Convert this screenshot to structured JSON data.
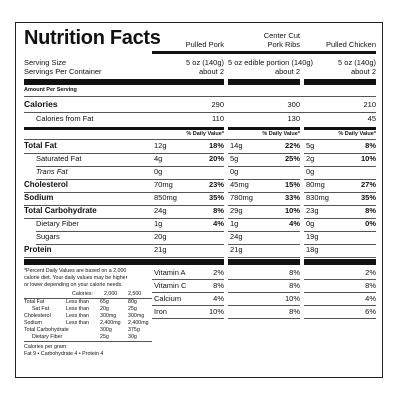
{
  "title": "Nutrition Facts",
  "columns": [
    "Pulled Pork",
    "Center Cut Pork Ribs",
    "Pulled Chicken"
  ],
  "columns_split": [
    [
      "Pulled Pork"
    ],
    [
      "Center Cut",
      "Pork Ribs"
    ],
    [
      "Pulled Chicken"
    ]
  ],
  "serving_size_label": "Serving Size",
  "servings_per_container_label": "Servings Per Container",
  "serving_sizes": [
    "5 oz (140g)",
    "5 oz edible portion (140g)",
    "5 oz (140g)"
  ],
  "servings": [
    "about 2",
    "about 2",
    "about 2"
  ],
  "amount_per_serving": "Amount Per Serving",
  "calories_label": "Calories",
  "calories": [
    "290",
    "300",
    "210"
  ],
  "calories_fat_label": "Calories from Fat",
  "calories_fat": [
    "110",
    "130",
    "45"
  ],
  "dv_header": "% Daily Value*",
  "nutrients": [
    {
      "label": "Total Fat",
      "bold": true,
      "indent": false,
      "vals": [
        [
          "12g",
          "18%"
        ],
        [
          "14g",
          "22%"
        ],
        [
          "5g",
          "8%"
        ]
      ]
    },
    {
      "label": "Saturated Fat",
      "bold": false,
      "indent": true,
      "vals": [
        [
          "4g",
          "20%"
        ],
        [
          "5g",
          "25%"
        ],
        [
          "2g",
          "10%"
        ]
      ]
    },
    {
      "label": "Trans Fat",
      "bold": false,
      "indent": true,
      "italic": true,
      "vals": [
        [
          "0g",
          ""
        ],
        [
          "0g",
          ""
        ],
        [
          "0g",
          ""
        ]
      ]
    },
    {
      "label": "Cholesterol",
      "bold": true,
      "indent": false,
      "vals": [
        [
          "70mg",
          "23%"
        ],
        [
          "45mg",
          "15%"
        ],
        [
          "80mg",
          "27%"
        ]
      ]
    },
    {
      "label": "Sodium",
      "bold": true,
      "indent": false,
      "vals": [
        [
          "850mg",
          "35%"
        ],
        [
          "780mg",
          "33%"
        ],
        [
          "830mg",
          "35%"
        ]
      ]
    },
    {
      "label": "Total Carbohydrate",
      "bold": true,
      "indent": false,
      "vals": [
        [
          "24g",
          "8%"
        ],
        [
          "29g",
          "10%"
        ],
        [
          "23g",
          "8%"
        ]
      ]
    },
    {
      "label": "Dietary Fiber",
      "bold": false,
      "indent": true,
      "vals": [
        [
          "1g",
          "4%"
        ],
        [
          "1g",
          "4%"
        ],
        [
          "0g",
          "0%"
        ]
      ]
    },
    {
      "label": "Sugars",
      "bold": false,
      "indent": true,
      "vals": [
        [
          "20g",
          ""
        ],
        [
          "24g",
          ""
        ],
        [
          "19g",
          ""
        ]
      ]
    },
    {
      "label": "Protein",
      "bold": true,
      "indent": false,
      "vals": [
        [
          "21g",
          ""
        ],
        [
          "21g",
          ""
        ],
        [
          "18g",
          ""
        ]
      ]
    }
  ],
  "vitamins": [
    {
      "label": "Vitamin A",
      "vals": [
        "2%",
        "8%",
        "2%"
      ]
    },
    {
      "label": "Vitamin C",
      "vals": [
        "8%",
        "8%",
        "8%"
      ]
    },
    {
      "label": "Calcium",
      "vals": [
        "4%",
        "10%",
        "4%"
      ]
    },
    {
      "label": "Iron",
      "vals": [
        "10%",
        "8%",
        "6%"
      ]
    }
  ],
  "footnote": [
    "*Percent Daily Values are based on a 2,000",
    "calorie diet. Your daily values may be higher",
    "or lower depending on your calorie needs."
  ],
  "ref_table": {
    "header": [
      "Calories:",
      "2,000",
      "2,500"
    ],
    "rows": [
      [
        "Total Fat",
        "Less than",
        "65g",
        "80g"
      ],
      [
        "Sat Fat",
        "Less than",
        "20g",
        "25g"
      ],
      [
        "Cholesterol",
        "Less than",
        "300mg",
        "300mg"
      ],
      [
        "Sodium",
        "Less than",
        "2,400mg",
        "2,400mg"
      ],
      [
        "Total Carbohydrate",
        "",
        "300g",
        "375g"
      ],
      [
        "Dietary Fiber",
        "",
        "25g",
        "30g"
      ]
    ]
  },
  "per_gram_label": "Calories per gram:",
  "per_gram": "Fat 9    •    Carbohydrate 4    •    Protein 4"
}
